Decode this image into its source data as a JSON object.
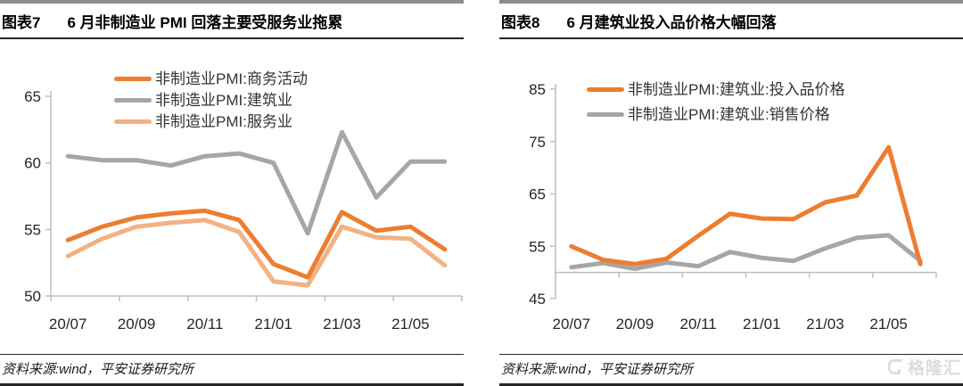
{
  "page": {
    "source_note": "资料来源:wind，平安证券研究所",
    "watermark": "格隆汇"
  },
  "panels": [
    {
      "figure_label": "图表7",
      "title": "6 月非制造业 PMI 回落主要受服务业拖累"
    },
    {
      "figure_label": "图表8",
      "title": "6 月建筑业投入品价格大幅回落"
    }
  ],
  "colors": {
    "orange": "#ED7D31",
    "peach": "#F4B183",
    "gray": "#A6A6A6",
    "axis": "#BFBFBF"
  },
  "chart_data": [
    {
      "type": "line",
      "title": "6 月非制造业 PMI 回落主要受服务业拖累",
      "xlabel": "",
      "ylabel": "",
      "categories": [
        "20/07",
        "20/08",
        "20/09",
        "20/10",
        "20/11",
        "20/12",
        "21/01",
        "21/02",
        "21/03",
        "21/04",
        "21/05",
        "21/06"
      ],
      "x_tick_labels": [
        "20/07",
        "20/09",
        "20/11",
        "21/01",
        "21/03",
        "21/05"
      ],
      "series": [
        {
          "name": "非制造业PMI:商务活动",
          "color": "#ED7D31",
          "values": [
            54.2,
            55.2,
            55.9,
            56.2,
            56.4,
            55.7,
            52.4,
            51.4,
            56.3,
            54.9,
            55.2,
            53.5
          ]
        },
        {
          "name": "非制造业PMI:建筑业",
          "color": "#A6A6A6",
          "values": [
            60.5,
            60.2,
            60.2,
            59.8,
            60.5,
            60.7,
            60.0,
            54.7,
            62.3,
            57.4,
            60.1,
            60.1
          ]
        },
        {
          "name": "非制造业PMI:服务业",
          "color": "#F4B183",
          "values": [
            53.0,
            54.3,
            55.2,
            55.5,
            55.7,
            54.8,
            51.1,
            50.8,
            55.2,
            54.4,
            54.3,
            52.3
          ]
        }
      ],
      "ylim": [
        50,
        65
      ],
      "yticks": [
        50,
        55,
        60,
        65
      ],
      "baseline": 50,
      "legend_position": "top-left-inside",
      "grid": false
    },
    {
      "type": "line",
      "title": "6 月建筑业投入品价格大幅回落",
      "xlabel": "",
      "ylabel": "",
      "categories": [
        "20/07",
        "20/08",
        "20/09",
        "20/10",
        "20/11",
        "20/12",
        "21/01",
        "21/02",
        "21/03",
        "21/04",
        "21/05",
        "21/06"
      ],
      "x_tick_labels": [
        "20/07",
        "20/09",
        "20/11",
        "21/01",
        "21/03",
        "21/05"
      ],
      "series": [
        {
          "name": "非制造业PMI:建筑业:投入品价格",
          "color": "#ED7D31",
          "values": [
            55.0,
            52.4,
            51.6,
            52.6,
            57.0,
            61.2,
            60.3,
            60.2,
            63.4,
            64.7,
            73.9,
            51.6
          ]
        },
        {
          "name": "非制造业PMI:建筑业:销售价格",
          "color": "#A6A6A6",
          "values": [
            51.0,
            51.8,
            50.7,
            51.9,
            51.2,
            53.9,
            52.8,
            52.2,
            54.6,
            56.6,
            57.1,
            52.2
          ]
        }
      ],
      "ylim": [
        45,
        85
      ],
      "yticks": [
        45,
        55,
        65,
        75,
        85
      ],
      "baseline": 50,
      "legend_position": "top-inside",
      "grid": false
    }
  ]
}
